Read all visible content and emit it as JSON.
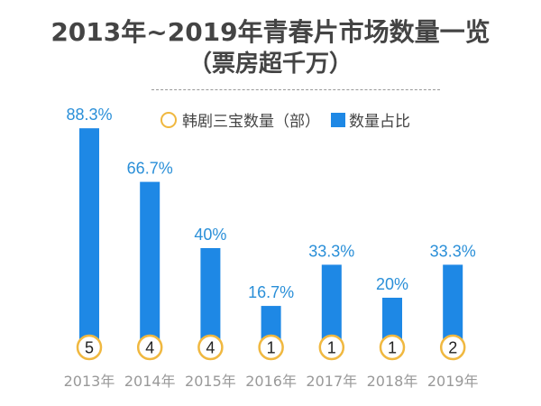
{
  "chart_data": {
    "type": "bar",
    "title": "2013年~2019年青春片市场数量一览",
    "subtitle": "（票房超千万）",
    "categories": [
      "2013年",
      "2014年",
      "2015年",
      "2016年",
      "2017年",
      "2018年",
      "2019年"
    ],
    "series": [
      {
        "name": "数量占比",
        "values": [
          88.3,
          66.7,
          40,
          16.7,
          33.3,
          20,
          33.3
        ],
        "labels": [
          "88.3%",
          "66.7%",
          "40%",
          "16.7%",
          "33.3%",
          "20%",
          "33.3%"
        ],
        "color": "#1e88e5"
      },
      {
        "name": "韩剧三宝数量（部）",
        "values": [
          5,
          4,
          4,
          1,
          1,
          1,
          2
        ],
        "color": "#f0b840"
      }
    ],
    "ylim": [
      0,
      100
    ],
    "grid": false,
    "legend": "top"
  }
}
